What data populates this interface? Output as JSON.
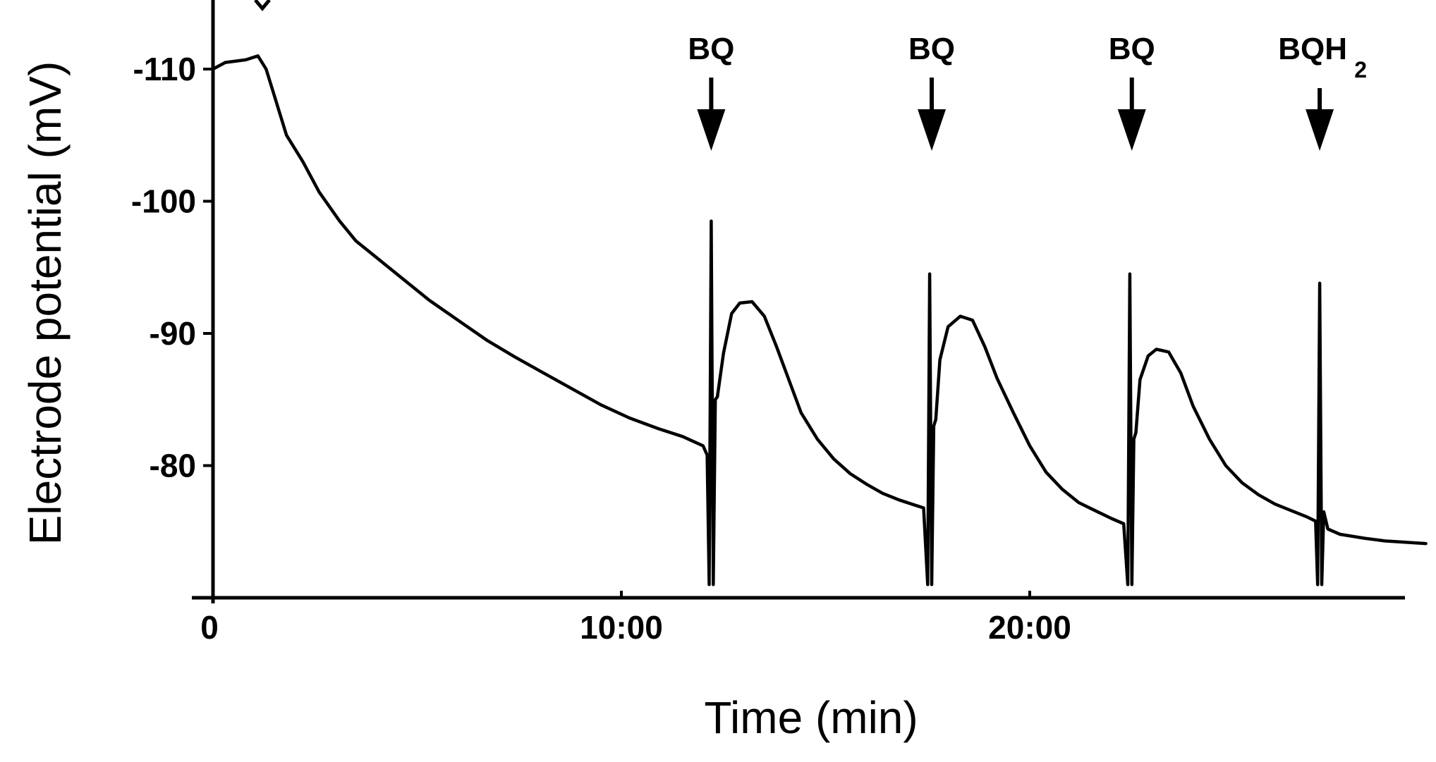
{
  "chart_data": {
    "type": "line",
    "xlabel": "Time (min)",
    "ylabel": "Electrode potential (mV)",
    "xlim": [
      0,
      29.7
    ],
    "ylim": [
      -70,
      -115
    ],
    "x_ticks": [
      {
        "value": 0,
        "label": "0"
      },
      {
        "value": 10,
        "label": "10:00"
      },
      {
        "value": 20,
        "label": "20:00"
      }
    ],
    "y_ticks": [
      {
        "value": -110,
        "label": "-110"
      },
      {
        "value": -100,
        "label": "-100"
      },
      {
        "value": -90,
        "label": "-90"
      },
      {
        "value": -80,
        "label": "-80"
      }
    ],
    "annotations": [
      {
        "label": "BQ",
        "x": 12.2
      },
      {
        "label": "BQ",
        "x": 17.6
      },
      {
        "label": "BQ",
        "x": 22.5
      },
      {
        "label": "BQH",
        "subscript": "2",
        "x": 27.1
      }
    ],
    "series": [
      {
        "x": [
          0,
          0.3,
          0.8,
          1.1,
          1.3,
          1.5,
          1.8,
          2.2,
          2.6,
          3.1,
          3.5,
          4.1,
          4.7,
          5.3,
          6.0,
          6.7,
          7.4,
          8.1,
          8.8,
          9.5,
          10.2,
          10.9,
          11.5,
          12.0,
          12.1,
          12.15,
          12.2,
          12.25,
          12.3,
          12.35,
          12.5,
          12.7,
          12.9,
          13.2,
          13.5,
          13.8,
          14.1,
          14.4,
          14.8,
          15.2,
          15.6,
          16.0,
          16.4,
          16.8,
          17.2,
          17.4,
          17.5,
          17.55,
          17.6,
          17.65,
          17.7,
          17.8,
          18.0,
          18.3,
          18.6,
          18.9,
          19.2,
          19.6,
          20.0,
          20.4,
          20.8,
          21.2,
          21.6,
          22.0,
          22.3,
          22.4,
          22.45,
          22.5,
          22.55,
          22.6,
          22.7,
          22.9,
          23.1,
          23.4,
          23.7,
          24.0,
          24.4,
          24.8,
          25.2,
          25.6,
          26.0,
          26.4,
          26.8,
          27.0,
          27.05,
          27.1,
          27.15,
          27.2,
          27.3,
          27.6,
          28.2,
          28.7,
          29.2,
          29.7
        ],
        "y": [
          -110,
          -110.5,
          -110.7,
          -111,
          -110,
          -108,
          -105,
          -103,
          -100.7,
          -98.5,
          -97,
          -95.5,
          -94,
          -92.5,
          -91,
          -89.5,
          -88.2,
          -87,
          -85.8,
          -84.6,
          -83.6,
          -82.8,
          -82.2,
          -81.5,
          -80.8,
          -71,
          -98.5,
          -71,
          -85,
          -85.2,
          -88.5,
          -91.5,
          -92.3,
          -92.4,
          -91.3,
          -89,
          -86.5,
          -84,
          -82,
          -80.5,
          -79.4,
          -78.6,
          -77.9,
          -77.4,
          -77,
          -76.8,
          -71,
          -94.5,
          -71,
          -83,
          -83.5,
          -88,
          -90.5,
          -91.3,
          -91,
          -89,
          -86.6,
          -84,
          -81.5,
          -79.5,
          -78.2,
          -77.2,
          -76.6,
          -76,
          -75.6,
          -71,
          -94.5,
          -71,
          -82,
          -82.5,
          -86.5,
          -88.3,
          -88.8,
          -88.6,
          -87,
          -84.5,
          -82,
          -80,
          -78.7,
          -77.8,
          -77.1,
          -76.6,
          -76.1,
          -75.8,
          -71,
          -93.8,
          -71,
          -76.5,
          -75.2,
          -74.8,
          -74.5,
          -74.3,
          -74.2,
          -74.1
        ]
      }
    ]
  }
}
